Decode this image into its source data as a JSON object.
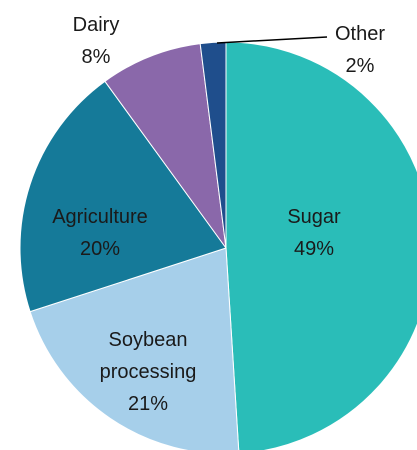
{
  "chart_data": {
    "type": "pie",
    "slices": [
      {
        "name": "Sugar",
        "value": 49,
        "value_label": "49%",
        "color": "#2ABDB8"
      },
      {
        "name": "Soybean processing",
        "value": 21,
        "value_label": "21%",
        "color": "#A6CFEA"
      },
      {
        "name": "Agriculture",
        "value": 20,
        "value_label": "20%",
        "color": "#157A99"
      },
      {
        "name": "Dairy",
        "value": 8,
        "value_label": "8%",
        "color": "#8A68AA"
      },
      {
        "name": "Other",
        "value": 2,
        "value_label": "2%",
        "color": "#1F4E8C"
      }
    ],
    "labels": {
      "sugar": [
        "Sugar",
        "49%"
      ],
      "soybean": [
        "Soybean",
        "processing",
        "21%"
      ],
      "agriculture": [
        "Agriculture",
        "20%"
      ],
      "dairy": [
        "Dairy",
        "8%"
      ],
      "other": [
        "Other",
        "2%"
      ]
    },
    "start_angle": "12 o'clock",
    "direction": "clockwise",
    "legend": "none"
  }
}
